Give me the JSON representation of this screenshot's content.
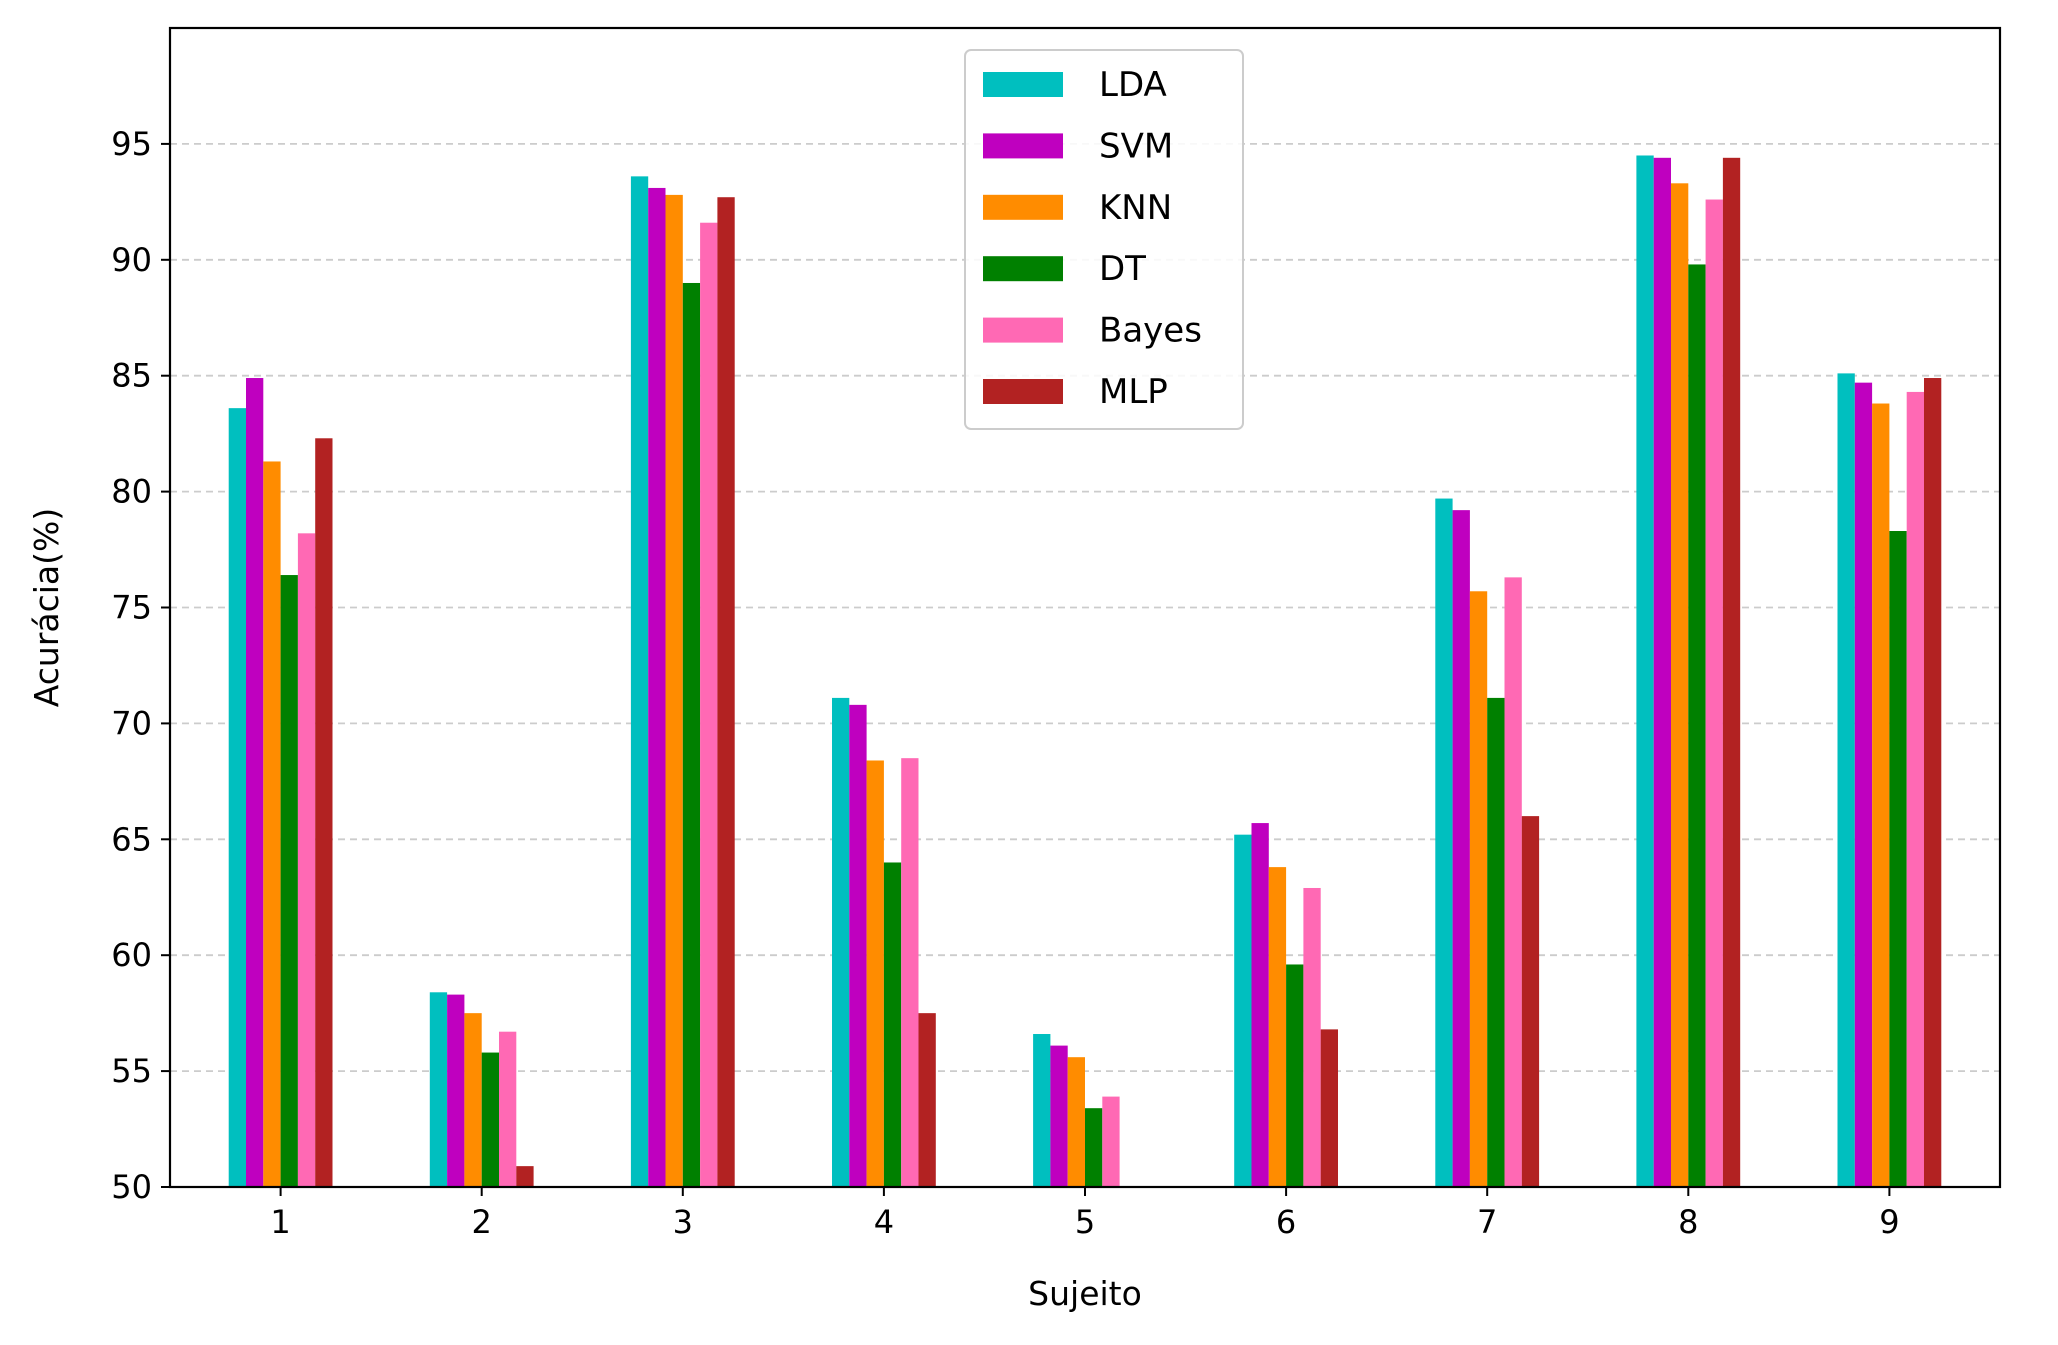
{
  "chart_data": {
    "type": "bar",
    "xlabel": "Sujeito",
    "ylabel": "Acurácia(%)",
    "categories": [
      "1",
      "2",
      "3",
      "4",
      "5",
      "6",
      "7",
      "8",
      "9"
    ],
    "ylim": [
      50,
      100
    ],
    "yticks": [
      50,
      55,
      60,
      65,
      70,
      75,
      80,
      85,
      90,
      95
    ],
    "grid": "horizontal dashed",
    "legend_position": "top-center",
    "series": [
      {
        "name": "LDA",
        "color": "#00bfbf",
        "values": [
          83.6,
          58.4,
          93.6,
          71.1,
          56.6,
          65.2,
          79.7,
          94.5,
          85.1
        ]
      },
      {
        "name": "SVM",
        "color": "#bf00bf",
        "values": [
          84.9,
          58.3,
          93.1,
          70.8,
          56.1,
          65.7,
          79.2,
          94.4,
          84.7
        ]
      },
      {
        "name": "KNN",
        "color": "#ff8c00",
        "values": [
          81.3,
          57.5,
          92.8,
          68.4,
          55.6,
          63.8,
          75.7,
          93.3,
          83.8
        ]
      },
      {
        "name": "DT",
        "color": "#008000",
        "values": [
          76.4,
          55.8,
          89.0,
          64.0,
          53.4,
          59.6,
          71.1,
          89.8,
          78.3
        ]
      },
      {
        "name": "Bayes",
        "color": "#ff69b4",
        "values": [
          78.2,
          56.7,
          91.6,
          68.5,
          53.9,
          62.9,
          76.3,
          92.6,
          84.3
        ]
      },
      {
        "name": "MLP",
        "color": "#b22222",
        "values": [
          82.3,
          50.9,
          92.7,
          57.5,
          50.0,
          56.8,
          66.0,
          94.4,
          84.9
        ]
      }
    ]
  }
}
